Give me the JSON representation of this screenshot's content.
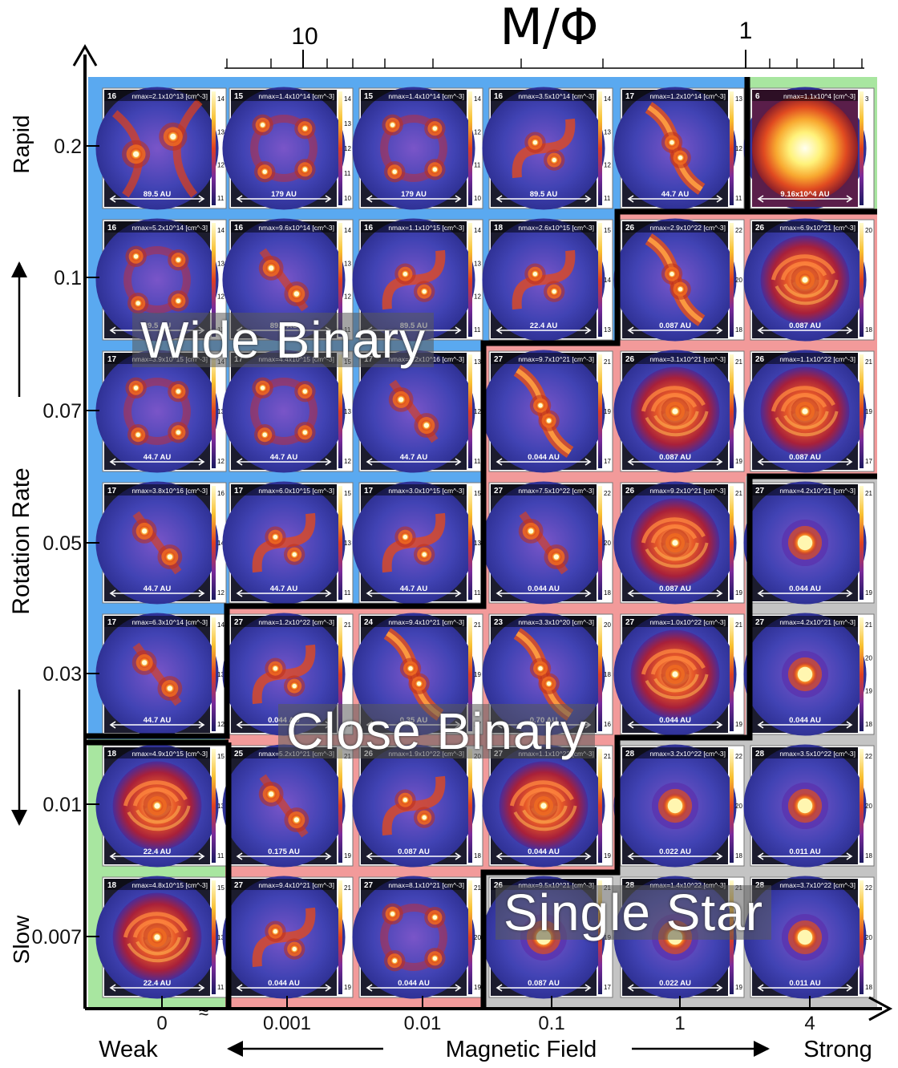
{
  "top_axis": {
    "title": "M/Φ",
    "tick_labels": [
      "10",
      "1"
    ]
  },
  "left_axis": {
    "title": "Rotation Rate",
    "top_label": "Rapid",
    "bottom_label": "Slow",
    "tick_labels": [
      "0.2",
      "0.1",
      "0.07",
      "0.05",
      "0.03",
      "0.01",
      "0.007"
    ]
  },
  "bottom_axis": {
    "title": "Magnetic Field",
    "left_label": "Weak",
    "right_label": "Strong",
    "tick_labels": [
      "0",
      "0.001",
      "0.01",
      "0.1",
      "1",
      "4"
    ]
  },
  "regions": {
    "wide_binary": "Wide Binary",
    "close_binary": "Close Binary",
    "single_star": "Single Star"
  },
  "colors": {
    "wide_binary": "#5aa9f0",
    "close_binary": "#f29a9a",
    "single_star": "#c4c4c4",
    "disk": "#a8e6a0",
    "background": "#1c1c2e",
    "envelope": "#3b3fa8"
  },
  "panels": [
    [
      {
        "label": "16",
        "nmax": "nmax=2.1x10^13 [cm^-3]",
        "scale": "89.5 AU",
        "type": "spiral2",
        "cb": [
          "14",
          "13",
          "12",
          "11"
        ]
      },
      {
        "label": "15",
        "nmax": "nmax=1.4x10^14 [cm^-3]",
        "scale": "179 AU",
        "type": "quad",
        "cb": [
          "14",
          "13",
          "12",
          "11",
          "10"
        ]
      },
      {
        "label": "15",
        "nmax": "nmax=1.4x10^14 [cm^-3]",
        "scale": "179 AU",
        "type": "quad",
        "cb": [
          "14",
          "12",
          "11",
          "10"
        ]
      },
      {
        "label": "16",
        "nmax": "nmax=3.5x10^14 [cm^-3]",
        "scale": "89.5 AU",
        "type": "binaryS",
        "cb": [
          "14",
          "13",
          "12",
          "11"
        ]
      },
      {
        "label": "17",
        "nmax": "nmax=1.2x10^14 [cm^-3]",
        "scale": "44.7 AU",
        "type": "bar",
        "cb": [
          "13",
          "12",
          "11"
        ]
      },
      {
        "label": "6",
        "nmax": "nmax=1.1x10^4 [cm^-3]",
        "scale": "9.16x10^4 AU",
        "type": "sun",
        "cb": [
          "3"
        ]
      }
    ],
    [
      {
        "label": "16",
        "nmax": "nmax=5.2x10^14 [cm^-3]",
        "scale": "89.5 AU",
        "type": "quad",
        "cb": [
          "14",
          "13",
          "12",
          "11"
        ]
      },
      {
        "label": "16",
        "nmax": "nmax=9.6x10^14 [cm^-3]",
        "scale": "89.5 AU",
        "type": "binary",
        "cb": [
          "14",
          "13",
          "12",
          "11"
        ]
      },
      {
        "label": "16",
        "nmax": "nmax=1.1x10^15 [cm^-3]",
        "scale": "89.5 AU",
        "type": "binaryS",
        "cb": [
          "14",
          "13",
          "12",
          "11"
        ]
      },
      {
        "label": "18",
        "nmax": "nmax=2.6x10^15 [cm^-3]",
        "scale": "22.4 AU",
        "type": "binaryS",
        "cb": [
          "15",
          "14",
          "13"
        ]
      },
      {
        "label": "26",
        "nmax": "nmax=2.9x10^22 [cm^-3]",
        "scale": "0.087 AU",
        "type": "bar",
        "cb": [
          "22",
          "20",
          "18"
        ]
      },
      {
        "label": "26",
        "nmax": "nmax=6.9x10^21 [cm^-3]",
        "scale": "0.087 AU",
        "type": "disk",
        "cb": [
          "20",
          "18"
        ]
      }
    ],
    [
      {
        "label": "17",
        "nmax": "nmax=3.9x10^15 [cm^-3]",
        "scale": "44.7 AU",
        "type": "quad",
        "cb": [
          "14",
          "13",
          "12"
        ]
      },
      {
        "label": "17",
        "nmax": "nmax=4.4x10^15 [cm^-3]",
        "scale": "44.7 AU",
        "type": "quad",
        "cb": [
          "15",
          "13",
          "12"
        ]
      },
      {
        "label": "17",
        "nmax": "nmax=3.2x10^16 [cm^-3]",
        "scale": "44.7 AU",
        "type": "binary",
        "cb": [
          "13",
          "12",
          "11"
        ]
      },
      {
        "label": "27",
        "nmax": "nmax=9.7x10^21 [cm^-3]",
        "scale": "0.044 AU",
        "type": "bar",
        "cb": [
          "21",
          "19",
          "17"
        ]
      },
      {
        "label": "26",
        "nmax": "nmax=3.1x10^21 [cm^-3]",
        "scale": "0.087 AU",
        "type": "disk",
        "cb": [
          "21",
          "19"
        ]
      },
      {
        "label": "26",
        "nmax": "nmax=1.1x10^22 [cm^-3]",
        "scale": "0.087 AU",
        "type": "disk",
        "cb": [
          "21",
          "19",
          "17"
        ]
      }
    ],
    [
      {
        "label": "17",
        "nmax": "nmax=3.8x10^16 [cm^-3]",
        "scale": "44.7 AU",
        "type": "binary",
        "cb": [
          "16",
          "14",
          "12"
        ]
      },
      {
        "label": "17",
        "nmax": "nmax=6.0x10^15 [cm^-3]",
        "scale": "44.7 AU",
        "type": "binaryS",
        "cb": [
          "15",
          "13",
          "11"
        ]
      },
      {
        "label": "17",
        "nmax": "nmax=3.0x10^15 [cm^-3]",
        "scale": "44.7 AU",
        "type": "binaryS",
        "cb": [
          "15",
          "13",
          "11"
        ]
      },
      {
        "label": "27",
        "nmax": "nmax=7.5x10^22 [cm^-3]",
        "scale": "0.044 AU",
        "type": "binary",
        "cb": [
          "22",
          "20",
          "18"
        ]
      },
      {
        "label": "26",
        "nmax": "nmax=9.2x10^21 [cm^-3]",
        "scale": "0.087 AU",
        "type": "disk",
        "cb": [
          "21",
          "19"
        ]
      },
      {
        "label": "27",
        "nmax": "nmax=4.2x10^21 [cm^-3]",
        "scale": "0.044 AU",
        "type": "single",
        "cb": [
          "21",
          "19"
        ]
      }
    ],
    [
      {
        "label": "17",
        "nmax": "nmax=6.3x10^14 [cm^-3]",
        "scale": "44.7 AU",
        "type": "binary",
        "cb": [
          "14",
          "13",
          "12"
        ]
      },
      {
        "label": "27",
        "nmax": "nmax=1.2x10^22 [cm^-3]",
        "scale": "0.044 AU",
        "type": "binaryS",
        "cb": [
          "21",
          "19"
        ]
      },
      {
        "label": "24",
        "nmax": "nmax=9.4x10^21 [cm^-3]",
        "scale": "0.35 AU",
        "type": "bar",
        "cb": [
          "21",
          "19",
          "17"
        ]
      },
      {
        "label": "23",
        "nmax": "nmax=3.3x10^20 [cm^-3]",
        "scale": "0.70 AU",
        "type": "bar",
        "cb": [
          "20",
          "18",
          "16"
        ]
      },
      {
        "label": "27",
        "nmax": "nmax=1.0x10^22 [cm^-3]",
        "scale": "0.044 AU",
        "type": "disk",
        "cb": [
          "21",
          "19"
        ]
      },
      {
        "label": "27",
        "nmax": "nmax=4.2x10^21 [cm^-3]",
        "scale": "0.044 AU",
        "type": "single",
        "cb": [
          "21",
          "20",
          "19",
          "18"
        ]
      }
    ],
    [
      {
        "label": "18",
        "nmax": "nmax=4.9x10^15 [cm^-3]",
        "scale": "22.4 AU",
        "type": "disk",
        "cb": [
          "15",
          "13",
          "11"
        ]
      },
      {
        "label": "25",
        "nmax": "nmax=5.2x10^21 [cm^-3]",
        "scale": "0.175 AU",
        "type": "binary",
        "cb": [
          "21",
          "19"
        ]
      },
      {
        "label": "26",
        "nmax": "nmax=1.9x10^22 [cm^-3]",
        "scale": "0.087 AU",
        "type": "binaryS",
        "cb": [
          "20",
          "18"
        ]
      },
      {
        "label": "27",
        "nmax": "nmax=1.1x10^22 [cm^-3]",
        "scale": "0.044 AU",
        "type": "disk",
        "cb": [
          "21",
          "19"
        ]
      },
      {
        "label": "28",
        "nmax": "nmax=3.2x10^22 [cm^-3]",
        "scale": "0.022 AU",
        "type": "single",
        "cb": [
          "22",
          "20",
          "18"
        ]
      },
      {
        "label": "28",
        "nmax": "nmax=3.5x10^22 [cm^-3]",
        "scale": "0.011 AU",
        "type": "single",
        "cb": [
          "22",
          "20",
          "18"
        ]
      }
    ],
    [
      {
        "label": "18",
        "nmax": "nmax=4.8x10^15 [cm^-3]",
        "scale": "22.4 AU",
        "type": "disk",
        "cb": [
          "15",
          "13",
          "11"
        ]
      },
      {
        "label": "27",
        "nmax": "nmax=9.4x10^21 [cm^-3]",
        "scale": "0.044 AU",
        "type": "binaryS",
        "cb": [
          "21",
          "19"
        ]
      },
      {
        "label": "27",
        "nmax": "nmax=8.1x10^21 [cm^-3]",
        "scale": "0.044 AU",
        "type": "quad",
        "cb": [
          "21",
          "20",
          "19"
        ]
      },
      {
        "label": "26",
        "nmax": "nmax=9.5x10^21 [cm^-3]",
        "scale": "0.087 AU",
        "type": "single",
        "cb": [
          "21",
          "19",
          "17"
        ]
      },
      {
        "label": "28",
        "nmax": "nmax=1.4x10^22 [cm^-3]",
        "scale": "0.022 AU",
        "type": "single",
        "cb": [
          "21",
          "19"
        ]
      },
      {
        "label": "28",
        "nmax": "nmax=3.7x10^22 [cm^-3]",
        "scale": "0.011 AU",
        "type": "single",
        "cb": [
          "22",
          "20",
          "18"
        ]
      }
    ]
  ]
}
